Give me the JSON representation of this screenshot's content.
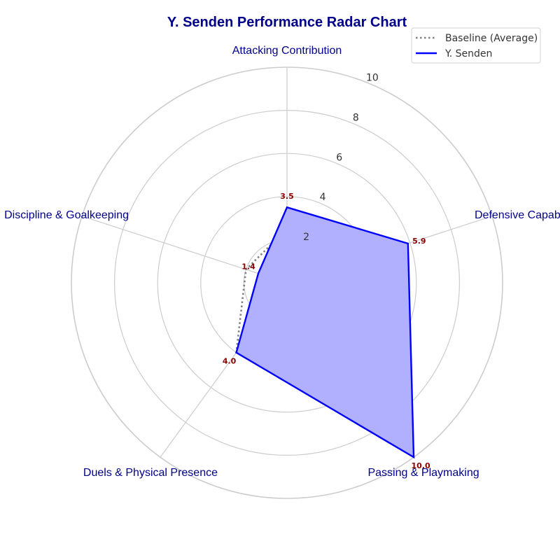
{
  "chart_data": {
    "type": "radar",
    "title": "Y. Senden Performance Radar Chart",
    "categories": [
      "Attacking Contribution",
      "Defensive Capability",
      "Passing & Playmaking",
      "Duels & Physical Presence",
      "Discipline & Goalkeeping"
    ],
    "rlim": [
      0,
      10
    ],
    "rticks": [
      2,
      4,
      6,
      8,
      10
    ],
    "grid": true,
    "legend_position": "top-right",
    "series": [
      {
        "name": "Baseline (Average)",
        "values": [
          2.5,
          3.7,
          3.9,
          4.0,
          2.0
        ],
        "style": "dotted",
        "color": "#808080",
        "fill": false
      },
      {
        "name": "Y. Senden",
        "values": [
          3.5,
          5.9,
          10.0,
          4.0,
          1.4
        ],
        "style": "solid",
        "color": "#0000ff",
        "fill": true,
        "fill_color": "#b0b0ff"
      }
    ],
    "value_labels": [
      "3.5",
      "5.9",
      "10.0",
      "4.0",
      "1.4"
    ],
    "value_label_color": "#8b0000"
  }
}
